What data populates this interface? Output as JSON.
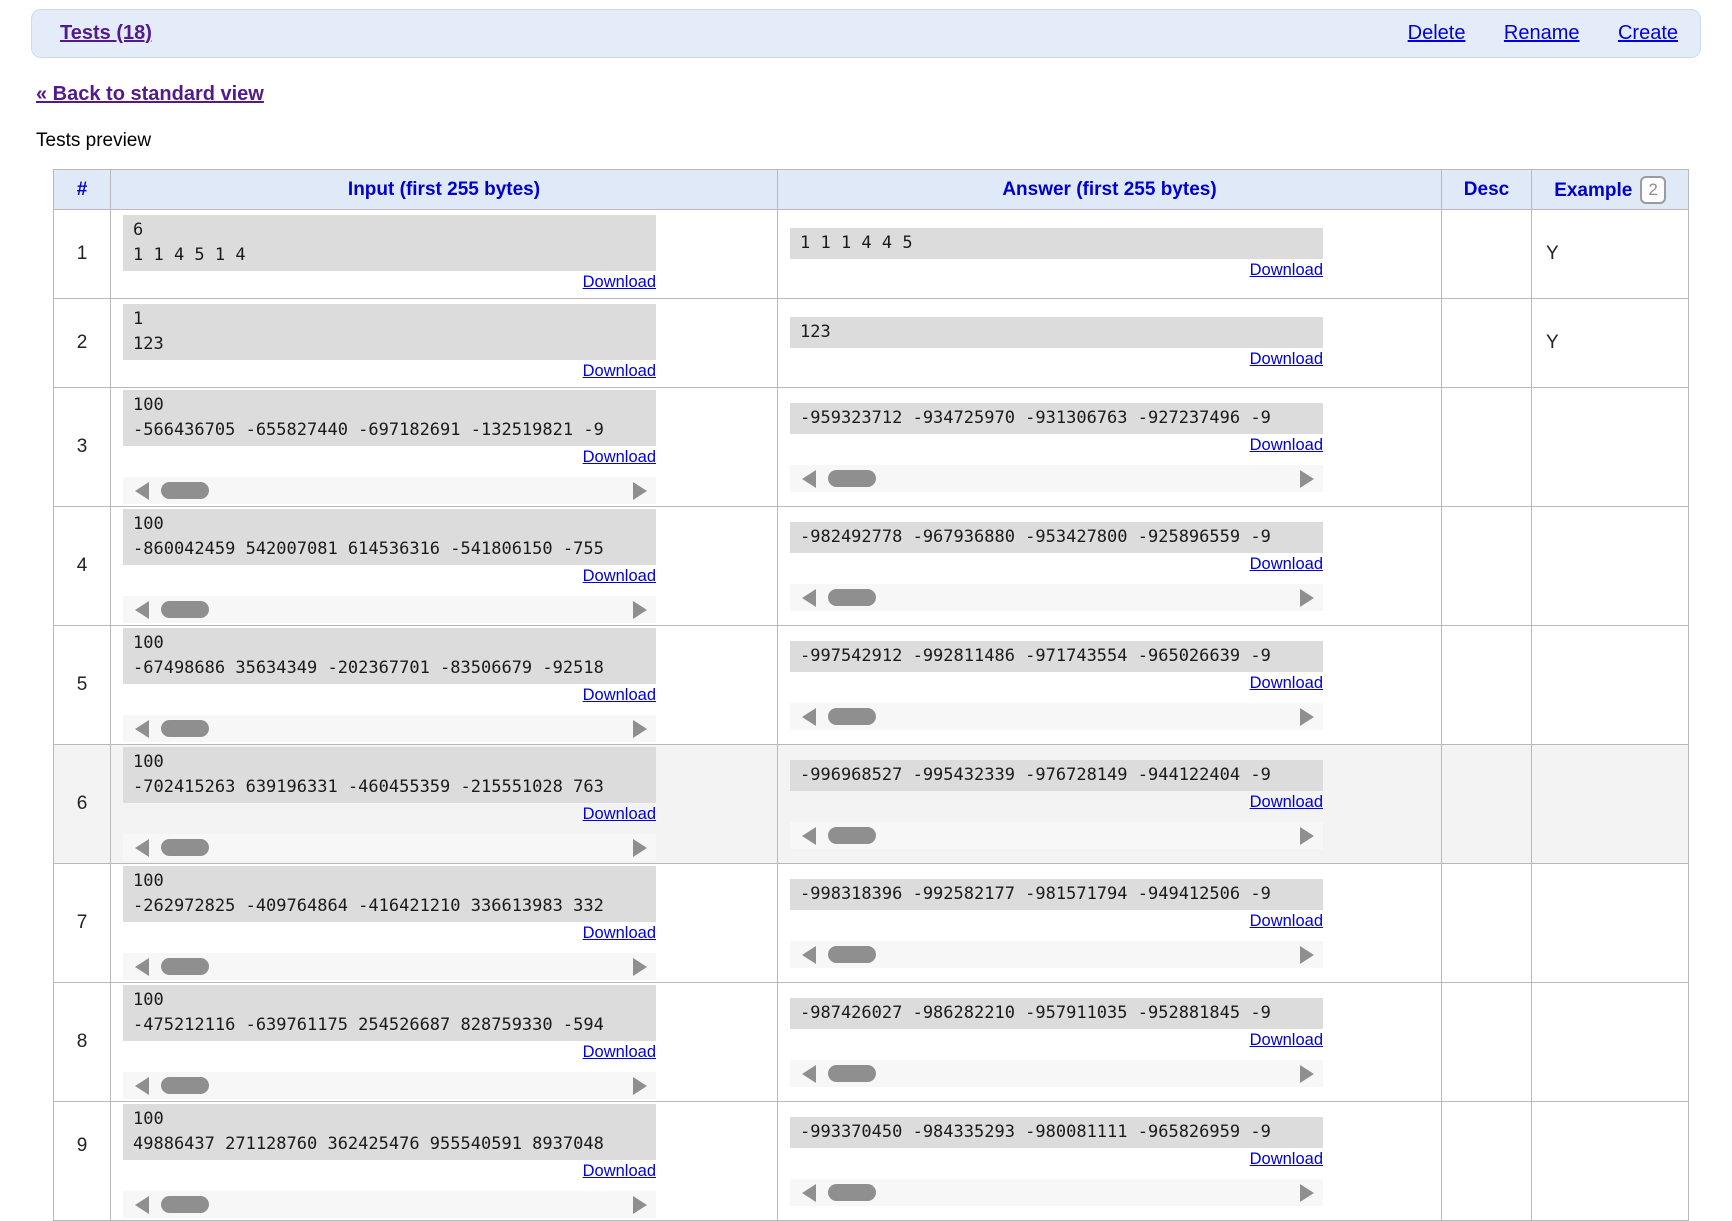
{
  "header": {
    "title": "Tests (18)",
    "actions": [
      "Delete",
      "Rename",
      "Create"
    ]
  },
  "back_link": "« Back to standard view",
  "preview_label": "Tests preview",
  "colors": {
    "bar_background": "#e4ecf9",
    "table_header_background": "#dfe9f7",
    "link_blue": "#0000dd",
    "visited_purple": "#521a8c",
    "preview_box_gray": "#dcdcdc",
    "scrollbar_gray": "#8f8f8f"
  },
  "table": {
    "columns": {
      "num": "#",
      "input": "Input (first 255 bytes)",
      "answer": "Answer (first 255 bytes)",
      "desc": "Desc",
      "example": "Example",
      "example_badge": "2"
    },
    "download_label": "Download",
    "rows": [
      {
        "num": "1",
        "input_lines": [
          "6",
          "1 1 4 5 1 4"
        ],
        "answer_lines": [
          "1 1 1 4 4 5"
        ],
        "input_scroll": false,
        "answer_scroll": false,
        "desc": "",
        "example": "Y",
        "highlighted": false
      },
      {
        "num": "2",
        "input_lines": [
          "1",
          "123"
        ],
        "answer_lines": [
          "123"
        ],
        "input_scroll": false,
        "answer_scroll": false,
        "desc": "",
        "example": "Y",
        "highlighted": false
      },
      {
        "num": "3",
        "input_lines": [
          "100",
          "-566436705 -655827440 -697182691 -132519821 -9"
        ],
        "answer_lines": [
          "-959323712 -934725970 -931306763 -927237496 -9"
        ],
        "input_scroll": true,
        "answer_scroll": true,
        "desc": "",
        "example": "",
        "highlighted": false
      },
      {
        "num": "4",
        "input_lines": [
          "100",
          "-860042459 542007081 614536316 -541806150 -755"
        ],
        "answer_lines": [
          "-982492778 -967936880 -953427800 -925896559 -9"
        ],
        "input_scroll": true,
        "answer_scroll": true,
        "desc": "",
        "example": "",
        "highlighted": false
      },
      {
        "num": "5",
        "input_lines": [
          "100",
          "-67498686 35634349 -202367701 -83506679 -92518"
        ],
        "answer_lines": [
          "-997542912 -992811486 -971743554 -965026639 -9"
        ],
        "input_scroll": true,
        "answer_scroll": true,
        "desc": "",
        "example": "",
        "highlighted": false
      },
      {
        "num": "6",
        "input_lines": [
          "100",
          "-702415263 639196331 -460455359 -215551028 763"
        ],
        "answer_lines": [
          "-996968527 -995432339 -976728149 -944122404 -9"
        ],
        "input_scroll": true,
        "answer_scroll": true,
        "desc": "",
        "example": "",
        "highlighted": true
      },
      {
        "num": "7",
        "input_lines": [
          "100",
          "-262972825 -409764864 -416421210 336613983 332"
        ],
        "answer_lines": [
          "-998318396 -992582177 -981571794 -949412506 -9"
        ],
        "input_scroll": true,
        "answer_scroll": true,
        "desc": "",
        "example": "",
        "highlighted": false
      },
      {
        "num": "8",
        "input_lines": [
          "100",
          "-475212116 -639761175 254526687 828759330 -594"
        ],
        "answer_lines": [
          "-987426027 -986282210 -957911035 -952881845 -9"
        ],
        "input_scroll": true,
        "answer_scroll": true,
        "desc": "",
        "example": "",
        "highlighted": false
      },
      {
        "num": "9",
        "input_lines": [
          "100",
          "49886437 271128760 362425476 955540591 8937048"
        ],
        "answer_lines": [
          "-993370450 -984335293 -980081111 -965826959 -9"
        ],
        "input_scroll": true,
        "answer_scroll": true,
        "desc": "",
        "example": "",
        "highlighted": false
      }
    ]
  }
}
